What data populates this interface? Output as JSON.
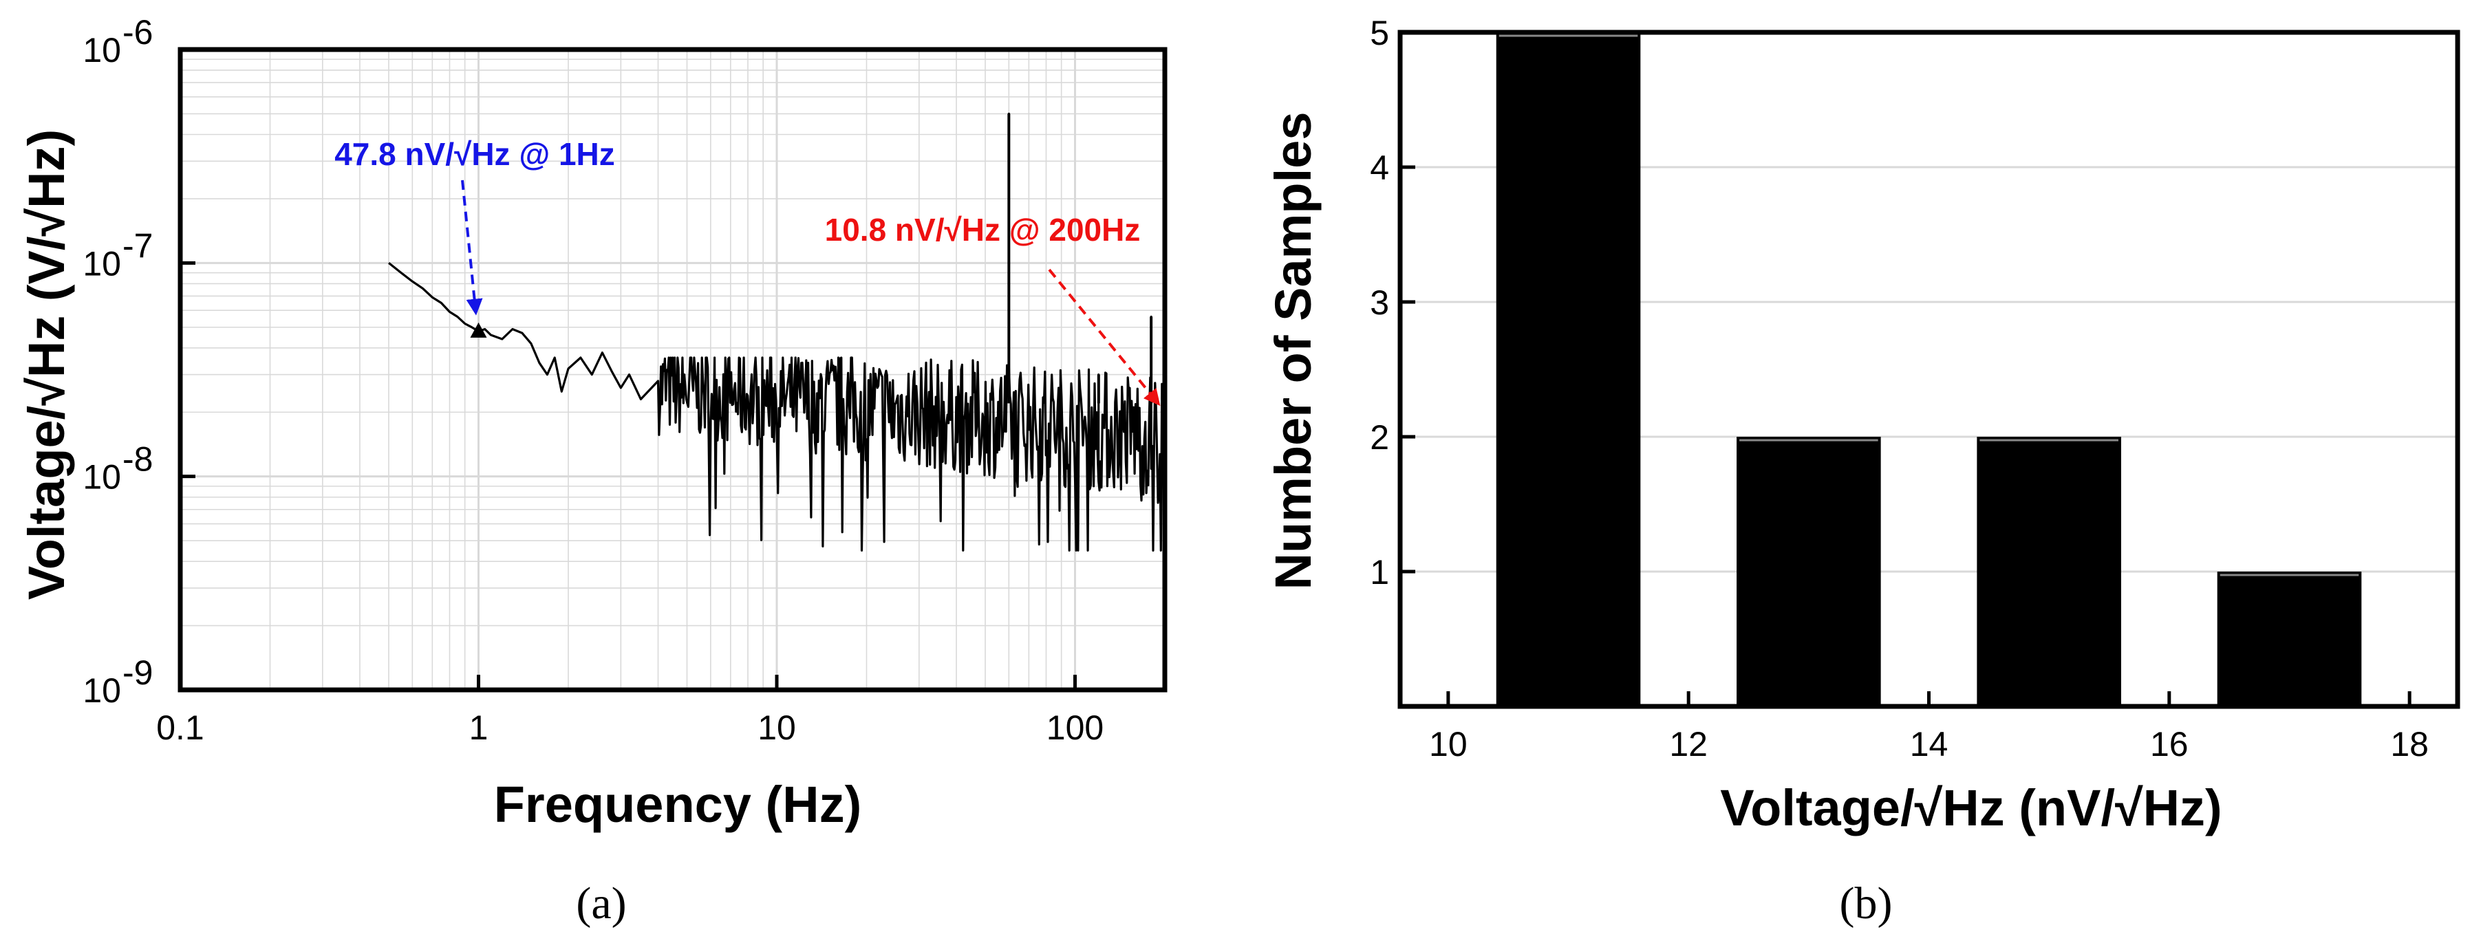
{
  "colors": {
    "blue": "#1515e6",
    "red": "#ee1111",
    "bar": "#000000",
    "trace": "#000000",
    "grid": "#d9d9d9"
  },
  "chart_data": [
    {
      "type": "line",
      "panel_label": "(a)",
      "xlabel": "Frequency (Hz)",
      "ylabel": "Voltage/√Hz (V/√Hz)",
      "xscale": "log",
      "yscale": "log",
      "xlim": [
        0.1,
        200
      ],
      "ylim": [
        1e-09,
        1e-06
      ],
      "grid": true,
      "x_tick_labels": [
        "0.1",
        "1",
        "10",
        "100"
      ],
      "x_tick_values": [
        0.1,
        1,
        10,
        100
      ],
      "y_tick_values": [
        1e-09,
        1e-08,
        1e-07,
        1e-06
      ],
      "y_tick_labels": [
        {
          "base": "10",
          "exp": "-9"
        },
        {
          "base": "10",
          "exp": "-8"
        },
        {
          "base": "10",
          "exp": "-7"
        },
        {
          "base": "10",
          "exp": "-6"
        }
      ],
      "series": [
        {
          "name": "noise spectral density",
          "points": [
            [
              0.5,
              1e-07
            ],
            [
              0.55,
              9e-08
            ],
            [
              0.6,
              8.2e-08
            ],
            [
              0.65,
              7.6e-08
            ],
            [
              0.7,
              6.9e-08
            ],
            [
              0.75,
              6.5e-08
            ],
            [
              0.8,
              5.9e-08
            ],
            [
              0.85,
              5.6e-08
            ],
            [
              0.9,
              5.2e-08
            ],
            [
              0.95,
              5e-08
            ],
            [
              1.0,
              4.78e-08
            ],
            [
              1.05,
              4.9e-08
            ],
            [
              1.1,
              4.6e-08
            ],
            [
              1.2,
              4.4e-08
            ],
            [
              1.3,
              4.9e-08
            ],
            [
              1.4,
              4.7e-08
            ],
            [
              1.5,
              4.2e-08
            ],
            [
              1.6,
              3.4e-08
            ],
            [
              1.7,
              3e-08
            ],
            [
              1.8,
              3.6e-08
            ],
            [
              1.9,
              2.5e-08
            ],
            [
              2.0,
              3.2e-08
            ],
            [
              2.2,
              3.6e-08
            ],
            [
              2.4,
              3e-08
            ],
            [
              2.6,
              3.8e-08
            ],
            [
              2.8,
              3.1e-08
            ],
            [
              3.0,
              2.6e-08
            ],
            [
              3.2,
              3e-08
            ],
            [
              3.5,
              2.3e-08
            ],
            [
              4.0,
              2.8e-08
            ]
          ]
        }
      ],
      "spikes": [
        {
          "x": 60,
          "y": 5e-07
        },
        {
          "x": 120,
          "y": 3e-08
        },
        {
          "x": 180,
          "y": 5.6e-08
        }
      ],
      "noise_floor": {
        "x_start": 4.0,
        "x_end": 200,
        "y_start": 2.6e-08,
        "y_end": 1.55e-08,
        "min_dip": 4.5e-09
      },
      "annotations": [
        {
          "text": "47.8 nV/√Hz @ 1Hz",
          "color": "blue",
          "points_to": [
            1,
            4.78e-08
          ]
        },
        {
          "text": "10.8 nV/√Hz @ 200Hz",
          "color": "red",
          "points_to": [
            190,
            2.2e-08
          ]
        }
      ]
    },
    {
      "type": "bar",
      "panel_label": "(b)",
      "xlabel": "Voltage/√Hz (nV/√Hz)",
      "ylabel": "Number of Samples",
      "xlim": [
        9.6,
        18.4
      ],
      "ylim": [
        0,
        5
      ],
      "grid": true,
      "x_tick_labels": [
        "10",
        "12",
        "14",
        "16",
        "18"
      ],
      "x_tick_values": [
        10,
        12,
        14,
        16,
        18
      ],
      "y_tick_labels": [
        "1",
        "2",
        "3",
        "4",
        "5"
      ],
      "y_tick_values": [
        1,
        2,
        3,
        4,
        5
      ],
      "bins": [
        {
          "start": 10.4,
          "end": 11.6,
          "value": 5
        },
        {
          "start": 12.4,
          "end": 13.6,
          "value": 2
        },
        {
          "start": 14.4,
          "end": 15.6,
          "value": 2
        },
        {
          "start": 16.4,
          "end": 17.6,
          "value": 1
        }
      ]
    }
  ]
}
